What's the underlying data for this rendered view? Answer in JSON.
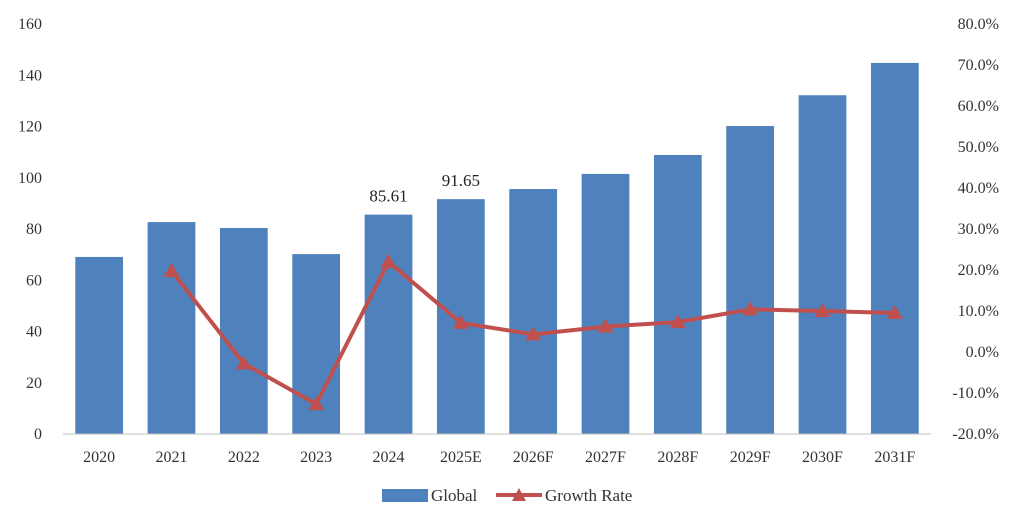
{
  "chart_data": {
    "type": "bar",
    "categories": [
      "2020",
      "2021",
      "2022",
      "2023",
      "2024",
      "2025E",
      "2026F",
      "2027F",
      "2028F",
      "2029F",
      "2030F",
      "2031F"
    ],
    "series": [
      {
        "name": "Global",
        "type": "bar",
        "axis": "left",
        "color": "#4F81BD",
        "values": [
          69.1,
          82.7,
          80.4,
          70.2,
          85.61,
          91.65,
          95.6,
          101.5,
          108.9,
          120.2,
          132.2,
          144.8
        ]
      },
      {
        "name": "Growth Rate",
        "type": "line",
        "axis": "right",
        "color": "#C0504D",
        "marker": "triangle",
        "values": [
          null,
          19.8,
          -2.8,
          -12.7,
          22.0,
          7.1,
          4.3,
          6.2,
          7.3,
          10.4,
          10.0,
          9.5
        ]
      }
    ],
    "data_labels": [
      {
        "category": "2024",
        "text": "85.61"
      },
      {
        "category": "2025E",
        "text": "91.65"
      }
    ],
    "y_left": {
      "min": 0,
      "max": 160,
      "ticks": [
        "0",
        "20",
        "40",
        "60",
        "80",
        "100",
        "120",
        "140",
        "160"
      ]
    },
    "y_right": {
      "min": -20,
      "max": 80,
      "ticks": [
        "-20.0%",
        "-10.0%",
        "0.0%",
        "10.0%",
        "20.0%",
        "30.0%",
        "40.0%",
        "50.0%",
        "60.0%",
        "70.0%",
        "80.0%"
      ]
    },
    "grid": false,
    "legend_position": "bottom"
  }
}
